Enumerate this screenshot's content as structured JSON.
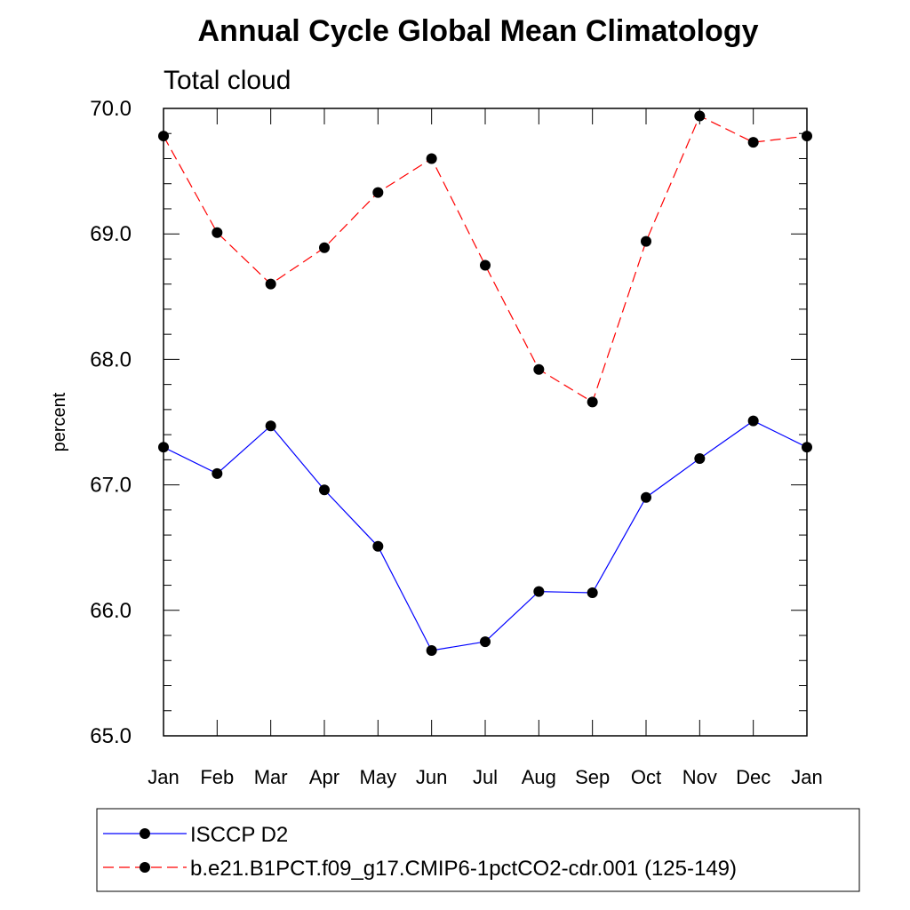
{
  "chart_data": {
    "type": "line",
    "title": "Annual Cycle Global Mean Climatology",
    "subtitle": "Total cloud",
    "xlabel": "",
    "ylabel": "percent",
    "ylim": [
      65.0,
      70.0
    ],
    "yticks": [
      "65.0",
      "66.0",
      "67.0",
      "68.0",
      "69.0",
      "70.0"
    ],
    "categories": [
      "Jan",
      "Feb",
      "Mar",
      "Apr",
      "May",
      "Jun",
      "Jul",
      "Aug",
      "Sep",
      "Oct",
      "Nov",
      "Dec",
      "Jan"
    ],
    "series": [
      {
        "name": "ISCCP D2",
        "color": "#0000ff",
        "style": "solid",
        "values": [
          67.3,
          67.09,
          67.47,
          66.96,
          66.51,
          65.68,
          65.75,
          66.15,
          66.14,
          66.9,
          67.21,
          67.51,
          67.3
        ]
      },
      {
        "name": "b.e21.B1PCT.f09_g17.CMIP6-1pctCO2-cdr.001 (125-149)",
        "color": "#ff0000",
        "style": "dashed",
        "values": [
          69.78,
          69.01,
          68.6,
          68.89,
          69.33,
          69.6,
          68.75,
          67.92,
          67.66,
          68.94,
          69.94,
          69.73,
          69.78
        ]
      }
    ],
    "legend_position": "bottom"
  }
}
